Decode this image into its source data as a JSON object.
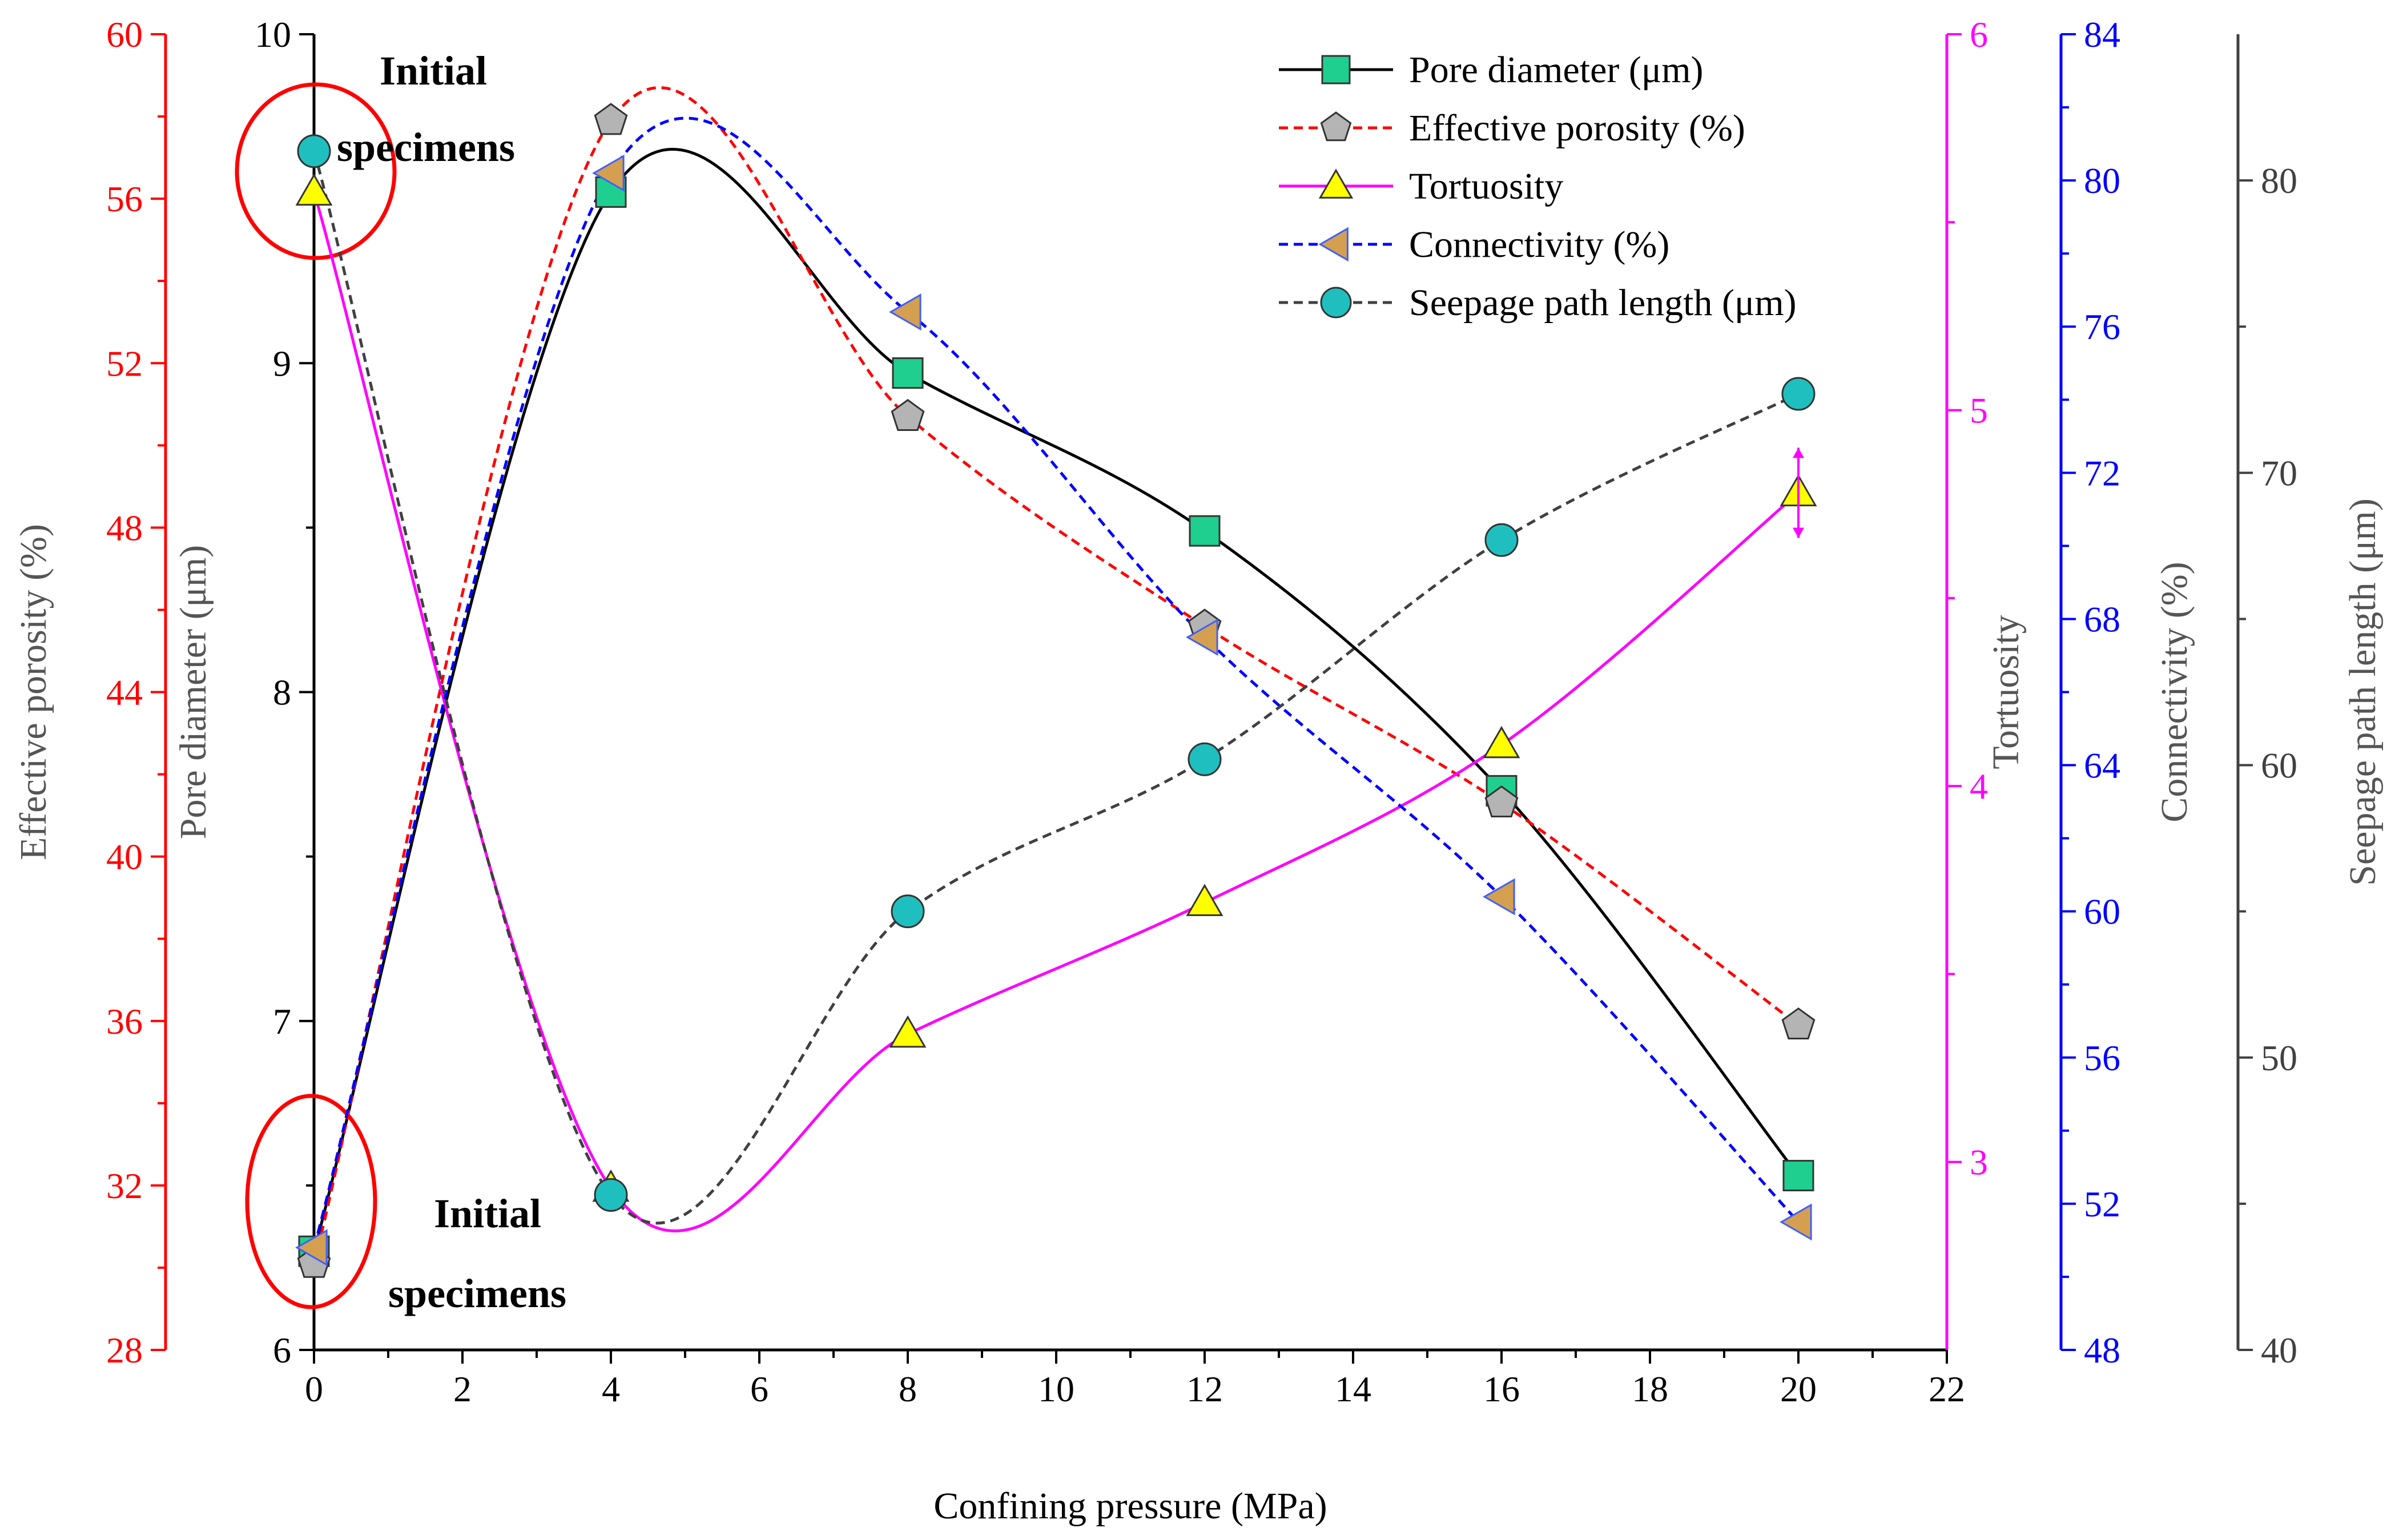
{
  "chart_data": {
    "type": "line",
    "x_label": "Confining pressure (MPa)",
    "x_ticks": [
      0,
      2,
      4,
      6,
      8,
      10,
      12,
      14,
      16,
      18,
      20,
      22
    ],
    "x_range": [
      0,
      22
    ],
    "axes": {
      "effective_porosity": {
        "label": "Effective porosity (%)",
        "range": [
          28,
          60
        ],
        "ticks": [
          28,
          32,
          36,
          40,
          44,
          48,
          52,
          56,
          60
        ],
        "color": "#ff0000"
      },
      "pore_diameter": {
        "label": "Pore diameter (μm)",
        "range": [
          6,
          10
        ],
        "ticks": [
          6,
          7,
          8,
          9,
          10
        ],
        "color": "#000000"
      },
      "tortuosity": {
        "label": "Tortuosity",
        "range": [
          2.5,
          6
        ],
        "ticks": [
          3,
          4,
          5,
          6
        ],
        "color": "#ff00ff"
      },
      "connectivity": {
        "label": "Connectivity (%)",
        "range": [
          48,
          84
        ],
        "ticks": [
          48,
          52,
          56,
          60,
          64,
          68,
          72,
          76,
          80,
          84
        ],
        "color": "#0000ff"
      },
      "seepage_path_length": {
        "label": "Seepage path length (μm)",
        "range": [
          40,
          85
        ],
        "ticks": [
          40,
          50,
          60,
          70,
          80
        ],
        "color": "#404040"
      }
    },
    "series": [
      {
        "name": "Pore diameter (μm)",
        "axis": "pore_diameter",
        "x": [
          0,
          4,
          8,
          12,
          16,
          20
        ],
        "values": [
          6.3,
          9.52,
          8.97,
          8.49,
          7.7,
          6.53
        ],
        "color": "#000000",
        "dash": "solid",
        "marker": "square",
        "marker_fill": "#1fcf8f"
      },
      {
        "name": "Effective porosity (%)",
        "axis": "effective_porosity",
        "x": [
          0,
          4,
          8,
          12,
          16,
          20
        ],
        "values": [
          30.1,
          57.9,
          50.7,
          45.6,
          41.3,
          35.9
        ],
        "color": "#ff0000",
        "dash": "dashed",
        "marker": "pentagon",
        "marker_fill": "#b4b4b4"
      },
      {
        "name": "Tortuosity",
        "axis": "tortuosity",
        "x": [
          0,
          4,
          8,
          12,
          16,
          20
        ],
        "values": [
          5.58,
          2.93,
          3.34,
          3.69,
          4.11,
          4.78
        ],
        "color": "#ff00ff",
        "dash": "solid",
        "marker": "triangle",
        "marker_fill": "#ffff00"
      },
      {
        "name": "Connectivity (%)",
        "axis": "connectivity",
        "x": [
          0,
          4,
          8,
          12,
          16,
          20
        ],
        "values": [
          50.8,
          80.2,
          76.4,
          67.5,
          60.4,
          51.5
        ],
        "color": "#0000ff",
        "dash": "dashed",
        "marker": "left-triangle",
        "marker_fill": "#d4a050"
      },
      {
        "name": "Seepage path length (μm)",
        "axis": "seepage_path_length",
        "x": [
          0,
          4,
          8,
          12,
          16,
          20
        ],
        "values": [
          81.0,
          45.3,
          55.0,
          60.2,
          67.7,
          72.7
        ],
        "color": "#404040",
        "dash": "dashed",
        "marker": "circle",
        "marker_fill": "#1fbfbf"
      }
    ],
    "annotations": [
      "Initial",
      "specimens",
      "Initial",
      "specimens"
    ]
  }
}
